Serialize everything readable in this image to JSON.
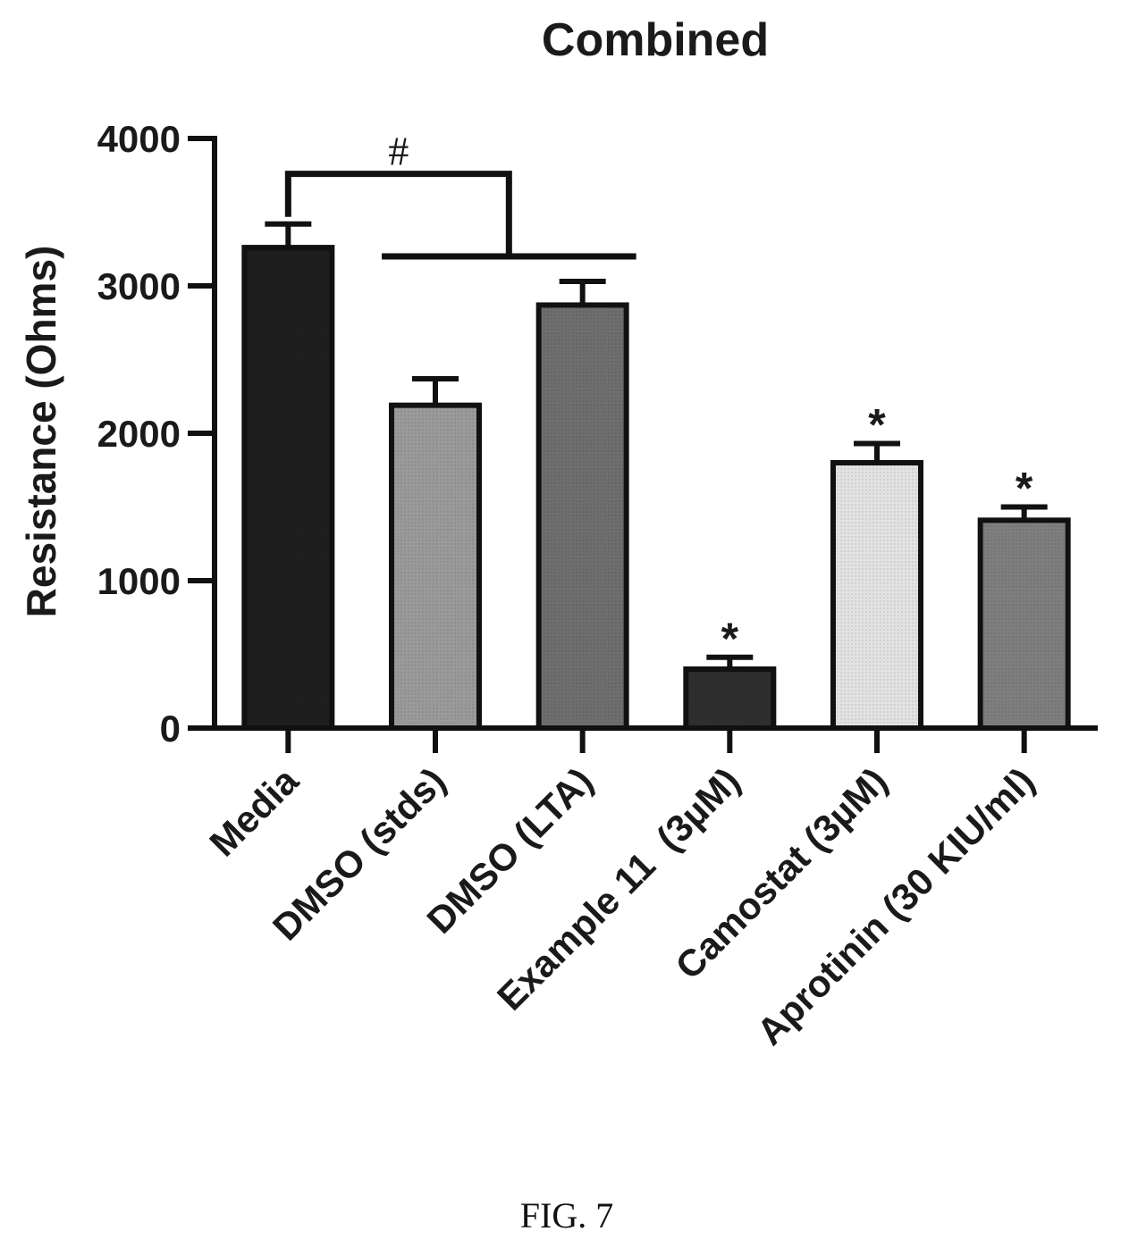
{
  "figure_label": "FIG. 7",
  "chart_data": {
    "type": "bar",
    "title": "Combined",
    "xlabel": "",
    "ylabel": "Resistance (Ohms)",
    "ylim": [
      0,
      4000
    ],
    "yticks": [
      0,
      1000,
      2000,
      3000,
      4000
    ],
    "categories": [
      "Media",
      "DMSO (stds)",
      "DMSO (LTA)",
      "Example 11  (3µM)",
      "Camostat (3µM)",
      "Aprotinin (30 KIU/ml)"
    ],
    "values": [
      3260,
      2190,
      2870,
      400,
      1800,
      1410
    ],
    "errors": [
      160,
      180,
      160,
      80,
      130,
      90
    ],
    "fills": [
      "#1e1e1e",
      "#9a9a9a",
      "#6e6e6e",
      "#2e2e2e",
      "#e2e2e2",
      "#7e7e7e"
    ],
    "significance": {
      "star_marker": "*",
      "starred_indices": [
        3,
        4,
        5
      ],
      "bracket_marker": "#",
      "bracket_from": 0,
      "bracket_to": [
        1,
        2
      ]
    },
    "grid": false,
    "legend": "none"
  }
}
